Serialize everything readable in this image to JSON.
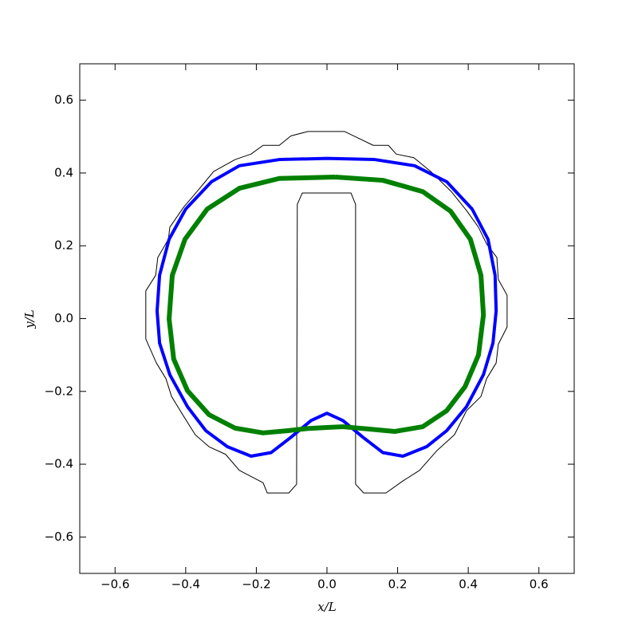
{
  "chart_data": {
    "type": "line",
    "xlabel": "x/L",
    "ylabel": "y/L",
    "xlim": [
      -0.7,
      0.7
    ],
    "ylim": [
      -0.7,
      0.7
    ],
    "xticks": [
      {
        "value": -0.6,
        "label": "−0.6"
      },
      {
        "value": -0.4,
        "label": "−0.4"
      },
      {
        "value": -0.2,
        "label": "−0.2"
      },
      {
        "value": 0,
        "label": "0.0"
      },
      0.2,
      0.4,
      0.6
    ],
    "yticks": [
      {
        "value": -0.6,
        "label": "−0.6"
      },
      {
        "value": -0.4,
        "label": "−0.4"
      },
      {
        "value": -0.2,
        "label": "−0.2"
      },
      {
        "value": 0,
        "label": "0.0"
      },
      0.2,
      0.4,
      0.6
    ],
    "grid": false,
    "series": [
      {
        "color": "#000000",
        "width": 1,
        "x": [
          -0.054,
          0.05,
          0.084,
          0.131,
          0.174,
          0.196,
          0.246,
          0.294,
          0.352,
          0.395,
          0.429,
          0.452,
          0.481,
          0.485,
          0.51,
          0.51,
          0.485,
          0.479,
          0.452,
          0.436,
          0.395,
          0.361,
          0.312,
          0.262,
          0.215,
          0.167,
          0.104,
          0.081,
          0.081,
          0.068,
          -0.07,
          -0.084,
          -0.086,
          -0.108,
          -0.169,
          -0.181,
          -0.248,
          -0.287,
          -0.334,
          -0.373,
          -0.406,
          -0.44,
          -0.456,
          -0.483,
          -0.513,
          -0.513,
          -0.485,
          -0.479,
          -0.449,
          -0.445,
          -0.406,
          -0.368,
          -0.321,
          -0.26,
          -0.215,
          -0.181,
          -0.135,
          -0.102,
          -0.054
        ],
        "values": [
          0.514,
          0.514,
          0.498,
          0.476,
          0.476,
          0.452,
          0.442,
          0.404,
          0.349,
          0.297,
          0.251,
          0.205,
          0.168,
          0.108,
          0.064,
          -0.023,
          -0.071,
          -0.122,
          -0.165,
          -0.214,
          -0.253,
          -0.319,
          -0.362,
          -0.417,
          -0.446,
          -0.479,
          -0.479,
          -0.455,
          0.314,
          0.345,
          0.345,
          0.314,
          -0.455,
          -0.479,
          -0.479,
          -0.451,
          -0.417,
          -0.373,
          -0.352,
          -0.319,
          -0.268,
          -0.214,
          -0.165,
          -0.122,
          -0.056,
          0.076,
          0.119,
          0.168,
          0.218,
          0.251,
          0.306,
          0.349,
          0.404,
          0.437,
          0.452,
          0.476,
          0.476,
          0.502,
          0.514
        ]
      },
      {
        "color": "#0000ff",
        "width": 4,
        "x": [
          0,
          0.135,
          0.248,
          0.339,
          0.411,
          0.456,
          0.476,
          0.479,
          0.47,
          0.443,
          0.395,
          0.339,
          0.282,
          0.215,
          0.158,
          0.102,
          0.045,
          0,
          -0.045,
          -0.102,
          -0.158,
          -0.215,
          -0.282,
          -0.343,
          -0.395,
          -0.445,
          -0.474,
          -0.481,
          -0.474,
          -0.447,
          -0.4,
          -0.327,
          -0.248,
          -0.135,
          0
        ],
        "values": [
          0.44,
          0.437,
          0.42,
          0.376,
          0.301,
          0.218,
          0.119,
          0.021,
          -0.067,
          -0.154,
          -0.242,
          -0.308,
          -0.352,
          -0.378,
          -0.368,
          -0.326,
          -0.28,
          -0.26,
          -0.28,
          -0.326,
          -0.368,
          -0.378,
          -0.352,
          -0.308,
          -0.242,
          -0.154,
          -0.067,
          0.021,
          0.119,
          0.218,
          0.301,
          0.376,
          0.42,
          0.437,
          0.44
        ]
      },
      {
        "color": "#008000",
        "width": 6,
        "x": [
          0.023,
          0.158,
          0.271,
          0.35,
          0.406,
          0.436,
          0.443,
          0.429,
          0.391,
          0.339,
          0.271,
          0.192,
          0.113,
          0.045,
          0,
          -0.056,
          -0.113,
          -0.181,
          -0.26,
          -0.334,
          -0.395,
          -0.434,
          -0.447,
          -0.438,
          -0.402,
          -0.339,
          -0.248,
          -0.135,
          0.023
        ],
        "values": [
          0.389,
          0.38,
          0.349,
          0.295,
          0.218,
          0.119,
          0.01,
          -0.1,
          -0.187,
          -0.253,
          -0.297,
          -0.31,
          -0.303,
          -0.297,
          -0.299,
          -0.302,
          -0.308,
          -0.314,
          -0.301,
          -0.264,
          -0.198,
          -0.111,
          -0.001,
          0.119,
          0.218,
          0.301,
          0.358,
          0.385,
          0.389
        ]
      }
    ]
  }
}
